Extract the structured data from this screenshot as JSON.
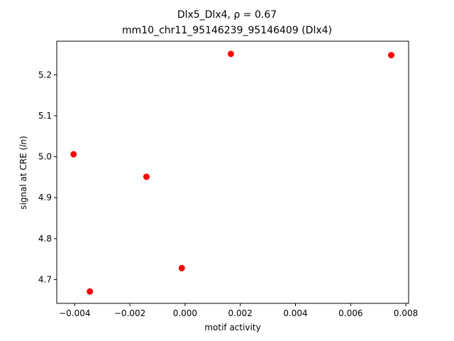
{
  "chart_data": {
    "type": "scatter",
    "title": "Dlx5_Dlx4, ρ = 0.67",
    "subtitle": "mm10_chr11_95146239_95146409 (Dlx4)",
    "xlabel": "motif activity",
    "ylabel_prefix": "signal at CRE (",
    "ylabel_italic": "ln",
    "ylabel_suffix": ")",
    "xlim": [
      -0.00465,
      0.0081
    ],
    "ylim": [
      4.642,
      5.282
    ],
    "xticks": [
      -0.004,
      -0.002,
      0.0,
      0.002,
      0.004,
      0.006,
      0.008
    ],
    "xtick_labels": [
      "−0.004",
      "−0.002",
      "0.000",
      "0.002",
      "0.004",
      "0.006",
      "0.008"
    ],
    "yticks": [
      4.7,
      4.8,
      4.9,
      5.0,
      5.1,
      5.2
    ],
    "ytick_labels": [
      "4.7",
      "4.8",
      "4.9",
      "5.0",
      "5.1",
      "5.2"
    ],
    "grid": false,
    "marker_color": "#ff0000",
    "points": [
      {
        "x": -0.00404,
        "y": 5.006
      },
      {
        "x": -0.00345,
        "y": 4.671
      },
      {
        "x": -0.0014,
        "y": 4.951
      },
      {
        "x": -0.00012,
        "y": 4.728
      },
      {
        "x": 0.00166,
        "y": 5.251
      },
      {
        "x": 0.00747,
        "y": 5.248
      }
    ]
  }
}
